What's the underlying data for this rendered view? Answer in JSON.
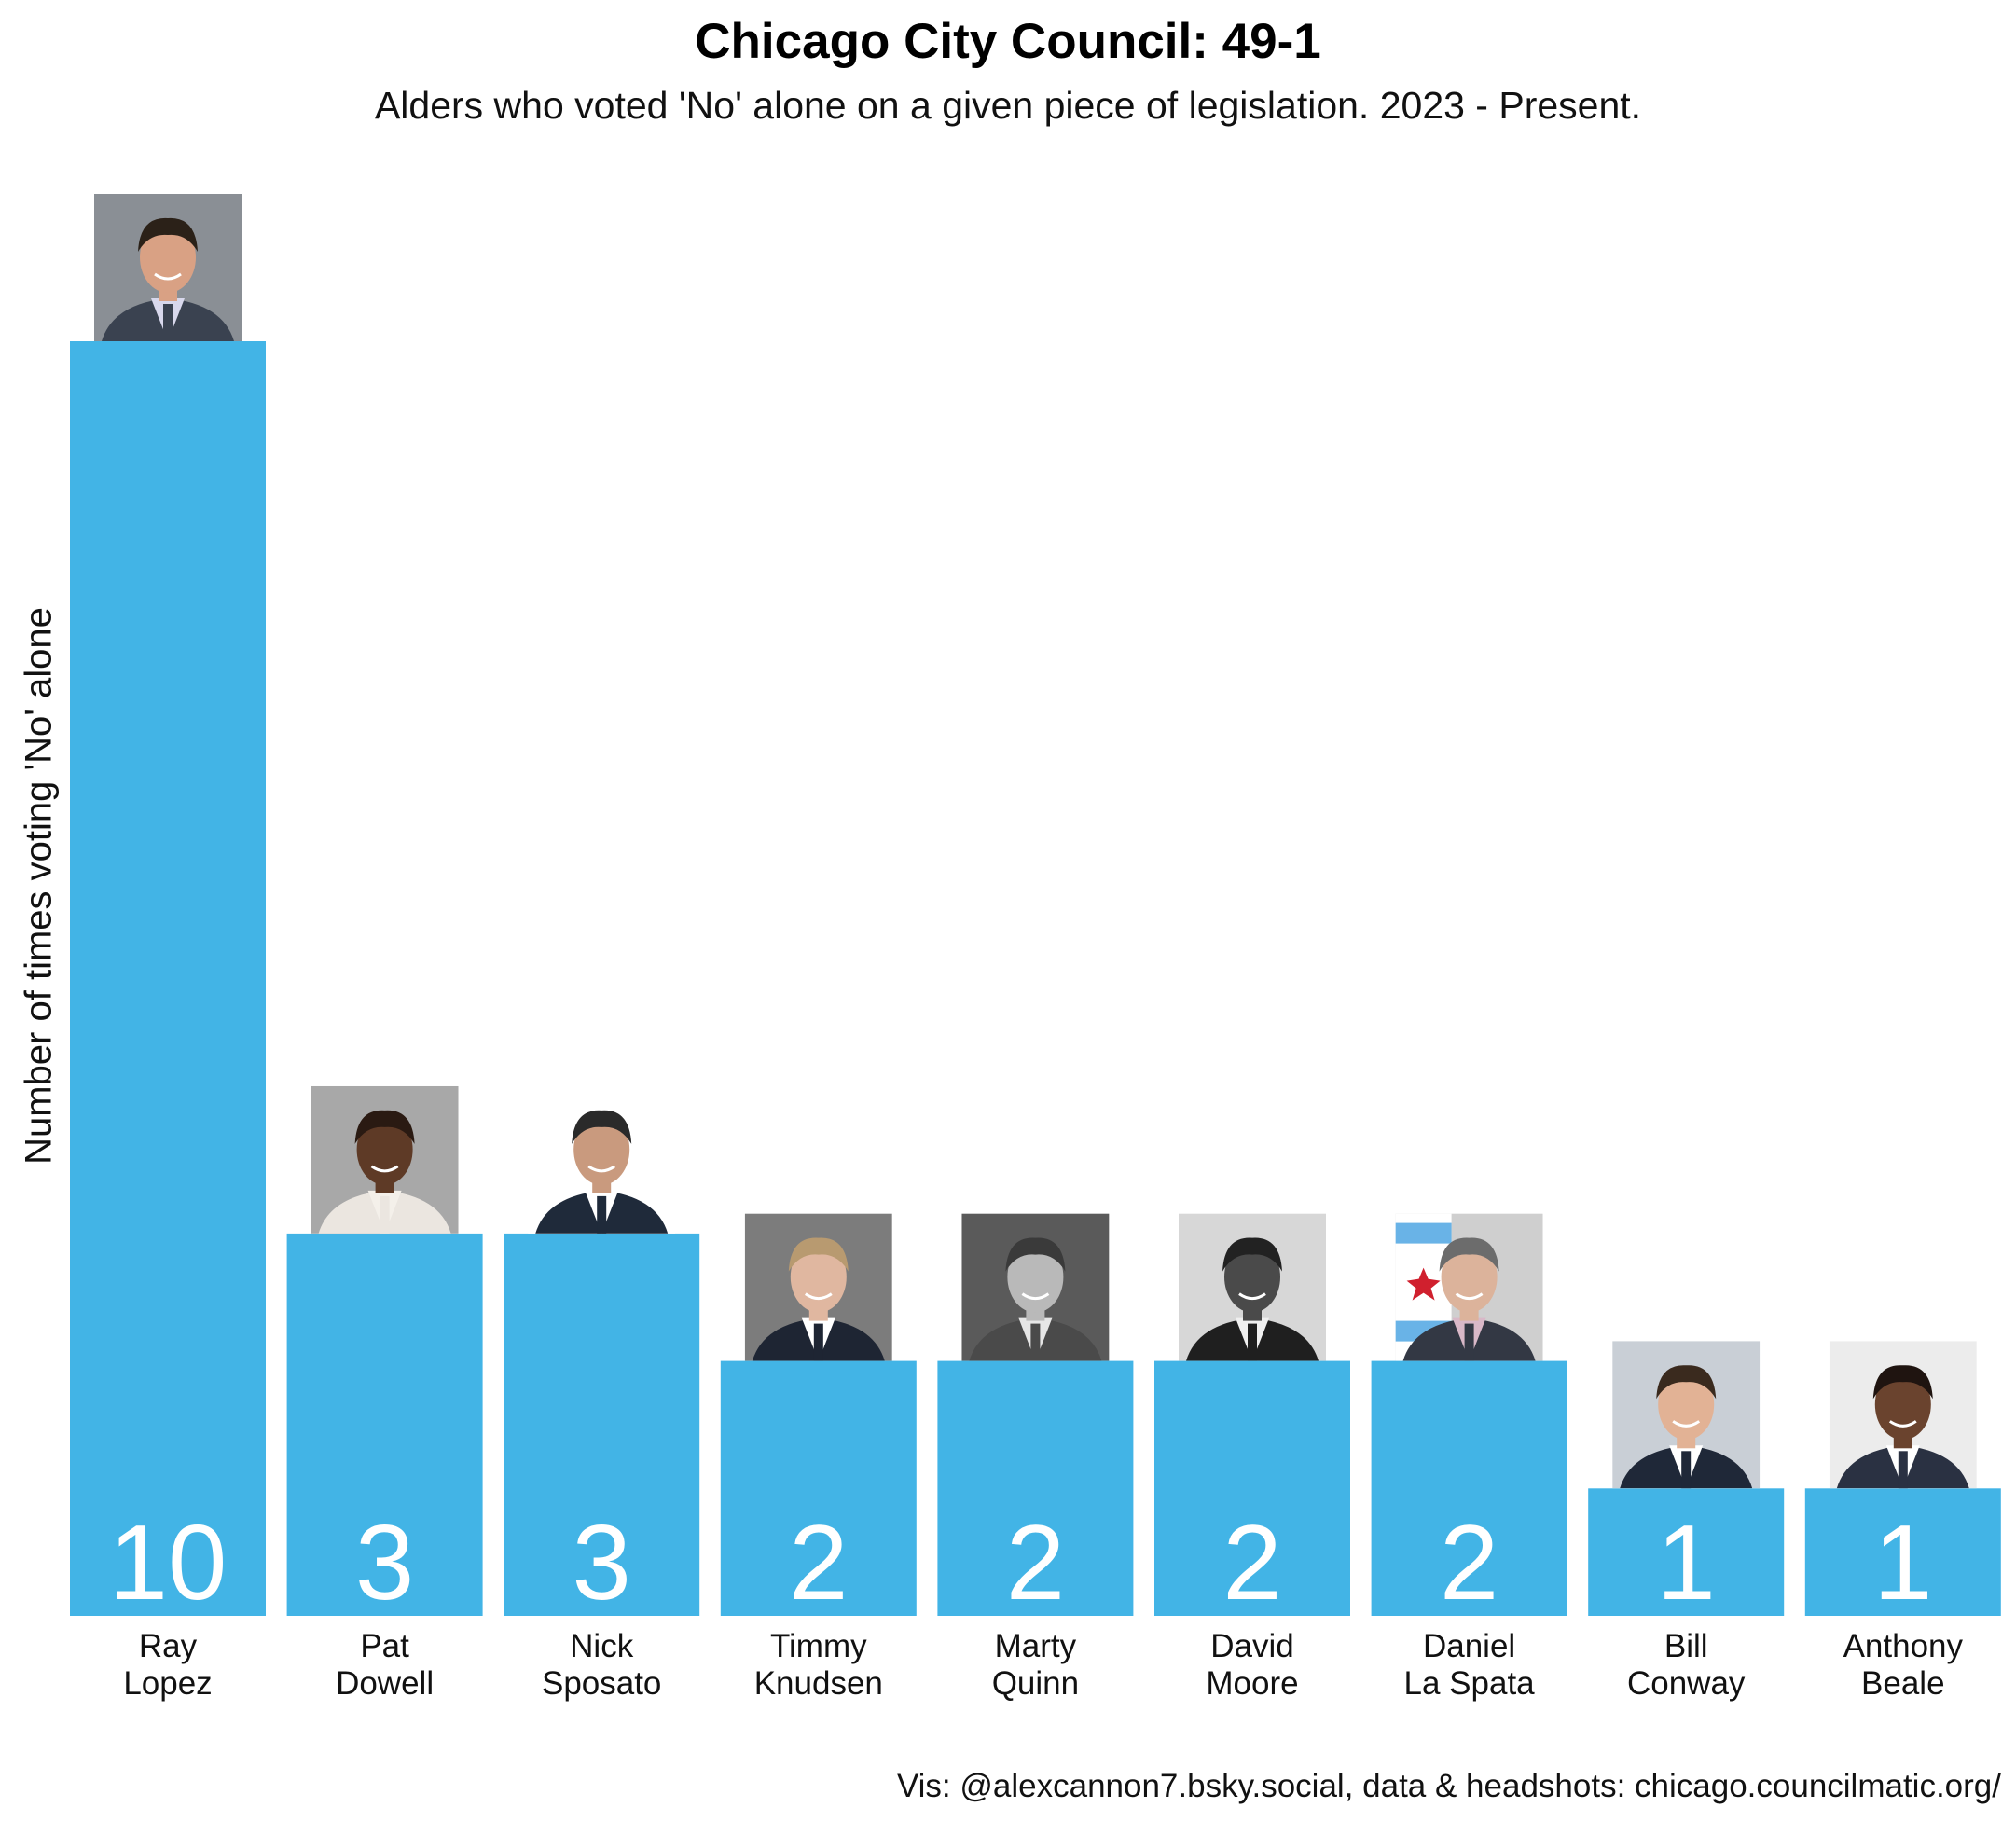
{
  "title": "Chicago City Council: 49-1",
  "subtitle": "Alders who voted 'No' alone on a given piece of legislation. 2023 - Present.",
  "caption": "Vis: @alexcannon7.bsky.social, data & headshots: chicago.councilmatic.org/",
  "colors": {
    "bar": "#42B4E6",
    "value_label": "#FFFFFF"
  },
  "chart_data": {
    "type": "bar",
    "title": "Chicago City Council: 49-1",
    "subtitle": "Alders who voted 'No' alone on a given piece of legislation. 2023 - Present.",
    "xlabel": "",
    "ylabel": "Number of times voting 'No' alone",
    "categories": [
      "Ray Lopez",
      "Pat Dowell",
      "Nick Sposato",
      "Timmy Knudsen",
      "Marty Quinn",
      "David Moore",
      "Daniel La Spata",
      "Bill Conway",
      "Anthony Beale"
    ],
    "category_lines": [
      [
        "Ray",
        "Lopez"
      ],
      [
        "Pat",
        "Dowell"
      ],
      [
        "Nick",
        "Sposato"
      ],
      [
        "Timmy",
        "Knudsen"
      ],
      [
        "Marty",
        "Quinn"
      ],
      [
        "David",
        "Moore"
      ],
      [
        "Daniel",
        "La Spata"
      ],
      [
        "Bill",
        "Conway"
      ],
      [
        "Anthony",
        "Beale"
      ]
    ],
    "values": [
      10,
      3,
      3,
      2,
      2,
      2,
      2,
      1,
      1
    ],
    "ylim": [
      0,
      10
    ],
    "grid": false,
    "legend": "none",
    "headshots": [
      {
        "tone": "color",
        "bg": "#8a8f95",
        "skin": "#d9a184",
        "hair": "#2b2118",
        "suit": "#3a4250",
        "shirt": "#d8d8ec"
      },
      {
        "tone": "color",
        "bg": "#a8a8a8",
        "skin": "#5e3a26",
        "hair": "#2a1a12",
        "suit": "#ebe6e0",
        "shirt": "#f4f0ea"
      },
      {
        "tone": "color",
        "bg": "#ffffff",
        "skin": "#c99a7e",
        "hair": "#2a2a2a",
        "suit": "#1f2a3a",
        "shirt": "#ffffff"
      },
      {
        "tone": "color",
        "bg": "#7c7c7c",
        "skin": "#e0b7a0",
        "hair": "#b89a70",
        "suit": "#1e2533",
        "shirt": "#ffffff"
      },
      {
        "tone": "gray",
        "bg": "#5a5a5a",
        "skin": "#b9b9b9",
        "hair": "#3a3a3a",
        "suit": "#4a4a4a",
        "shirt": "#e6e6e6"
      },
      {
        "tone": "gray",
        "bg": "#d7d7d7",
        "skin": "#4a4a4a",
        "hair": "#222222",
        "suit": "#1f1f1f",
        "shirt": "#f0f0f0"
      },
      {
        "tone": "color",
        "bg": "#cfcfcf",
        "skin": "#dcb39b",
        "hair": "#6c6c6c",
        "suit": "#333844",
        "shirt": "#d9b8c8",
        "flag": true
      },
      {
        "tone": "color",
        "bg": "#c9cfd6",
        "skin": "#e2b295",
        "hair": "#3a2a1e",
        "suit": "#1f2838",
        "shirt": "#ffffff"
      },
      {
        "tone": "color",
        "bg": "#ececec",
        "skin": "#6a432e",
        "hair": "#1f1410",
        "suit": "#2a3142",
        "shirt": "#ffffff"
      }
    ]
  }
}
